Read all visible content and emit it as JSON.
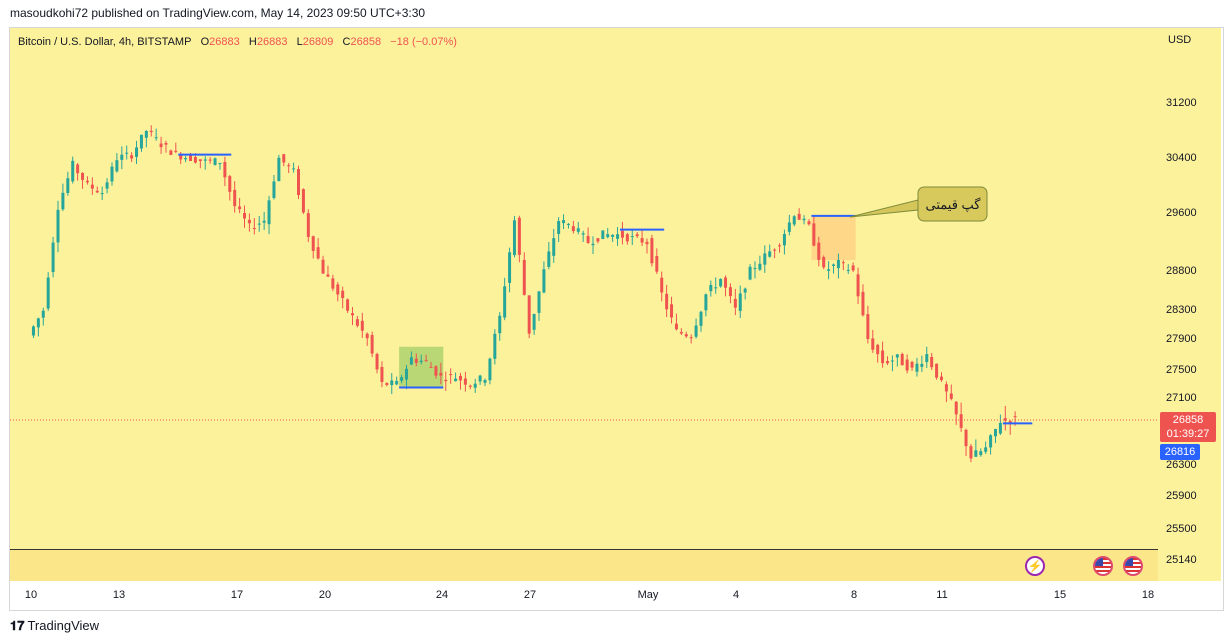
{
  "attribution": "masoudkohi72 published on TradingView.com, May 14, 2023 09:50 UTC+3:30",
  "header": {
    "symbol": "Bitcoin / U.S. Dollar, 4h, BITSTAMP",
    "o_label": "O",
    "o_value": "26883",
    "h_label": "H",
    "h_value": "26883",
    "l_label": "L",
    "l_value": "26809",
    "c_label": "C",
    "c_value": "26858",
    "change": "−18 (−0.07%)"
  },
  "currency": "USD",
  "price_badge": {
    "price": "26858",
    "countdown": "01:39:27"
  },
  "mark_badge": "26816",
  "callout": "گپ قیمتی",
  "footer": {
    "brand": "TradingView"
  },
  "colors": {
    "up": "#26a69a",
    "down": "#ef5350",
    "background": "#fdf29c",
    "line": "#2962ff"
  },
  "icons": [
    "lightning-icon",
    "us-flag-icon",
    "us-flag-icon"
  ],
  "chart_data": {
    "type": "candlestick",
    "y_scale": "log",
    "y_ticks": [
      31200,
      30400,
      29600,
      28800,
      28300,
      27900,
      27500,
      27100,
      26300,
      25900,
      25500,
      25140
    ],
    "x_ticks": [
      "10",
      "13",
      "17",
      "20",
      "24",
      "27",
      "May",
      "4",
      "8",
      "11",
      "15",
      "18"
    ],
    "ylim": [
      25140,
      31800
    ],
    "last_price": 26858,
    "mark_price": 26816,
    "path": [
      [
        "2023-04-10",
        27950
      ],
      [
        "2023-04-10.5",
        28300
      ],
      [
        "2023-04-11",
        29700
      ],
      [
        "2023-04-11.5",
        30300
      ],
      [
        "2023-04-12",
        30000
      ],
      [
        "2023-04-12.5",
        29900
      ],
      [
        "2023-04-13",
        30400
      ],
      [
        "2023-04-13.5",
        30450
      ],
      [
        "2023-04-14",
        30800
      ],
      [
        "2023-04-14.5",
        30600
      ],
      [
        "2023-04-15",
        30450
      ],
      [
        "2023-04-15.5",
        30400
      ],
      [
        "2023-04-16",
        30350
      ],
      [
        "2023-04-16.5",
        30350
      ],
      [
        "2023-04-17",
        29700
      ],
      [
        "2023-04-17.5",
        29400
      ],
      [
        "2023-04-18",
        29500
      ],
      [
        "2023-04-18.5",
        30400
      ],
      [
        "2023-04-19",
        30200
      ],
      [
        "2023-04-19.5",
        29300
      ],
      [
        "2023-04-20",
        28800
      ],
      [
        "2023-04-20.5",
        28500
      ],
      [
        "2023-04-21",
        28200
      ],
      [
        "2023-04-21.5",
        27900
      ],
      [
        "2023-04-22",
        27300
      ],
      [
        "2023-04-22.5",
        27300
      ],
      [
        "2023-04-23",
        27650
      ],
      [
        "2023-04-23.5",
        27600
      ],
      [
        "2023-04-24",
        27400
      ],
      [
        "2023-04-24.5",
        27400
      ],
      [
        "2023-04-25",
        27300
      ],
      [
        "2023-04-25.5",
        27400
      ],
      [
        "2023-04-26",
        28200
      ],
      [
        "2023-04-26.5",
        29500
      ],
      [
        "2023-04-27",
        28000
      ],
      [
        "2023-04-27.5",
        28800
      ],
      [
        "2023-04-28",
        29500
      ],
      [
        "2023-04-28.5",
        29400
      ],
      [
        "2023-04-29",
        29200
      ],
      [
        "2023-04-29.5",
        29300
      ],
      [
        "2023-04-30",
        29300
      ],
      [
        "2023-04-30.5",
        29250
      ],
      [
        "2023-05-01",
        29200
      ],
      [
        "2023-05-01.5",
        28500
      ],
      [
        "2023-05-02",
        28000
      ],
      [
        "2023-05-02.5",
        27950
      ],
      [
        "2023-05-03",
        28500
      ],
      [
        "2023-05-03.5",
        28700
      ],
      [
        "2023-05-04",
        28300
      ],
      [
        "2023-05-04.5",
        28800
      ],
      [
        "2023-05-05",
        29000
      ],
      [
        "2023-05-05.5",
        29200
      ],
      [
        "2023-05-06",
        29600
      ],
      [
        "2023-05-06.5",
        29400
      ],
      [
        "2023-05-07",
        28800
      ],
      [
        "2023-05-07.5",
        28900
      ],
      [
        "2023-05-08",
        28800
      ],
      [
        "2023-05-08.5",
        27900
      ],
      [
        "2023-05-09",
        27600
      ],
      [
        "2023-05-09.5",
        27650
      ],
      [
        "2023-05-10",
        27500
      ],
      [
        "2023-05-10.5",
        27700
      ],
      [
        "2023-05-11",
        27300
      ],
      [
        "2023-05-11.5",
        26900
      ],
      [
        "2023-05-12",
        26400
      ],
      [
        "2023-05-12.5",
        26500
      ],
      [
        "2023-05-13",
        26850
      ],
      [
        "2023-05-13.5",
        26858
      ]
    ],
    "annotations": [
      {
        "type": "horizontal_line",
        "from": "2023-04-15",
        "to": "2023-04-16.8",
        "price": 30450
      },
      {
        "type": "horizontal_line",
        "from": "2023-04-22.5",
        "to": "2023-04-24",
        "price": 27250
      },
      {
        "type": "horizontal_line",
        "from": "2023-04-30",
        "to": "2023-05-01.5",
        "price": 29370
      },
      {
        "type": "horizontal_line",
        "from": "2023-05-06.5",
        "to": "2023-05-08",
        "price": 29560
      },
      {
        "type": "horizontal_line",
        "from": "2023-05-13",
        "to": "2023-05-14",
        "price": 26816
      },
      {
        "type": "gap_zone",
        "from": "2023-04-22.5",
        "to": "2023-04-24",
        "low": 27250,
        "high": 27800,
        "color": "#9ccc65"
      },
      {
        "type": "gap_zone",
        "from": "2023-05-06.5",
        "to": "2023-05-08",
        "low": 28950,
        "high": 29560,
        "color": "#ffcc80"
      }
    ]
  }
}
